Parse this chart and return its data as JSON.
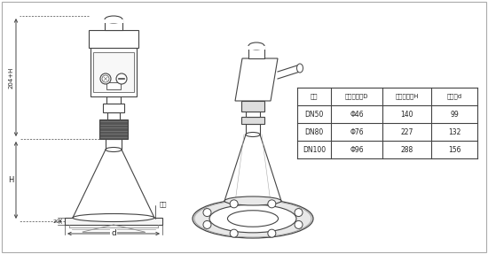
{
  "bg_color": "#ffffff",
  "table_headers": [
    "法兰",
    "喇叭口直径D",
    "喇叭口高度H",
    "四氟盘d"
  ],
  "table_rows": [
    [
      "DN50",
      "Φ46",
      "140",
      "99"
    ],
    [
      "DN80",
      "Φ76",
      "227",
      "132"
    ],
    [
      "DN100",
      "Φ96",
      "288",
      "156"
    ]
  ],
  "dim_label_204H": "204+H",
  "dim_label_H": "H",
  "dim_label_20": "20",
  "dim_label_d": "d",
  "dim_label_falan": "法兰",
  "line_color": "#444444",
  "table_line_color": "#444444",
  "text_color": "#222222"
}
